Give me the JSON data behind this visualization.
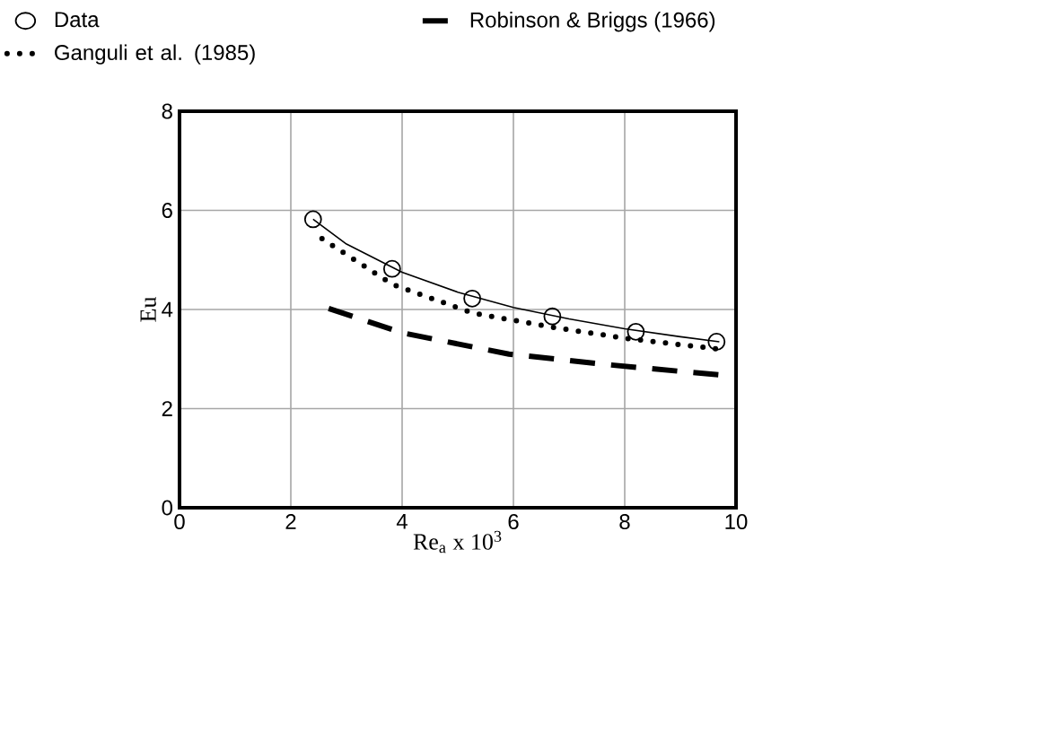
{
  "chart_data": {
    "type": "line",
    "xlabel": "Re$_{a}$ x 10$^{3}$",
    "ylabel": "Eu",
    "xlim": [
      0,
      10
    ],
    "ylim": [
      0,
      8
    ],
    "xticks": [
      0,
      2,
      4,
      6,
      8,
      10
    ],
    "yticks": [
      0,
      2,
      4,
      6,
      8
    ],
    "grid": true,
    "legend": "top",
    "series": [
      {
        "name": "Data",
        "type": "scatter",
        "marker": "circle",
        "color": "#000000",
        "x": [
          2.4,
          3.82,
          5.26,
          6.7,
          8.2,
          9.65
        ],
        "values": [
          5.82,
          4.82,
          4.22,
          3.86,
          3.55,
          3.35
        ]
      },
      {
        "name": "Robinson & Briggs (1966)",
        "line_style": "dashed",
        "color": "#000000",
        "x": [
          2.68,
          4.0,
          5.92,
          7.76,
          9.7
        ],
        "values": [
          4.02,
          3.53,
          3.1,
          2.88,
          2.68
        ]
      },
      {
        "name": "Ganguli et al. (1985)",
        "line_style": "dotted",
        "color": "#000000",
        "x": [
          2.56,
          3.82,
          5.26,
          6.72,
          8.0,
          9.7
        ],
        "values": [
          5.43,
          4.51,
          3.93,
          3.64,
          3.42,
          3.2
        ]
      },
      {
        "line_style": "solid",
        "color": "#000000",
        "x": [
          2.4,
          3.0,
          4.0,
          5.0,
          6.0,
          7.0,
          8.0,
          9.0,
          9.7
        ],
        "values": [
          5.82,
          5.32,
          4.75,
          4.35,
          4.04,
          3.81,
          3.61,
          3.45,
          3.35
        ]
      }
    ]
  }
}
